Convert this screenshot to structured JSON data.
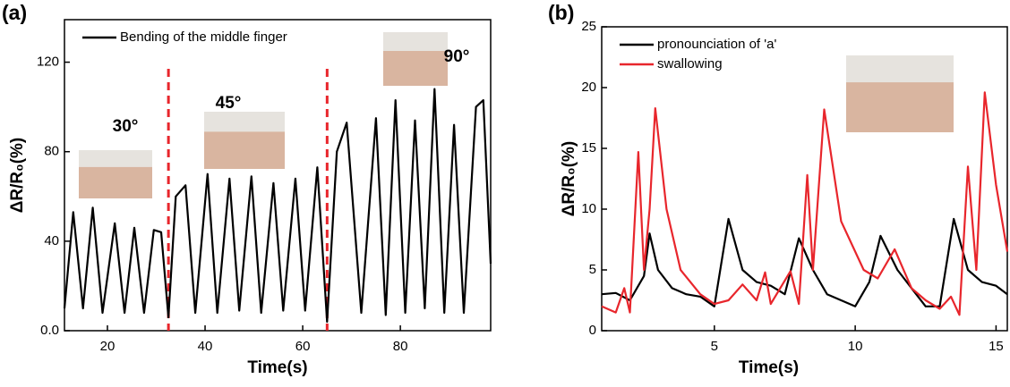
{
  "chart_data": [
    {
      "type": "line",
      "panel_label": "(a)",
      "xlabel": "Time(s)",
      "ylabel": "ΔR/R₀(%)",
      "xlim": [
        11.2,
        98.5
      ],
      "ylim": [
        0,
        139
      ],
      "xticks": [
        20,
        40,
        60,
        80
      ],
      "yticks": [
        {
          "value": 0,
          "label": "0.0"
        },
        40,
        80,
        120
      ],
      "vlines": [
        32.5,
        65
      ],
      "vline_color": "#e8262c",
      "annotations": [
        "30°",
        "45°",
        "90°"
      ],
      "series": [
        {
          "name": "Bending of the middle finger",
          "color": "#000000",
          "x": [
            11.2,
            13,
            15,
            17,
            19,
            21.5,
            23.5,
            25.5,
            27.5,
            29.5,
            31,
            32.5,
            34,
            36,
            38,
            40.5,
            42.5,
            45,
            47,
            49.5,
            51.5,
            54,
            56,
            58.5,
            60.5,
            63,
            65,
            67,
            69,
            72,
            75,
            77,
            79,
            81,
            83,
            85,
            87,
            89,
            91,
            93,
            95.5,
            97,
            98.5
          ],
          "values": [
            10,
            53,
            10,
            55,
            8,
            48,
            8,
            46,
            8,
            45,
            44,
            6,
            60,
            65,
            8,
            70,
            8,
            68,
            9,
            69,
            8,
            66,
            9,
            68,
            9,
            73,
            4,
            80,
            93,
            8,
            95,
            7,
            103,
            8,
            94,
            10,
            108,
            8,
            92,
            8,
            100,
            103,
            30
          ]
        }
      ]
    },
    {
      "type": "line",
      "panel_label": "(b)",
      "xlabel": "Time(s)",
      "ylabel": "ΔR/R₀(%)",
      "xlim": [
        1,
        15.4
      ],
      "ylim": [
        0,
        25
      ],
      "xticks": [
        5,
        10,
        15
      ],
      "yticks": [
        0,
        5,
        10,
        15,
        20,
        25
      ],
      "series": [
        {
          "name": "pronounciation of  'a'",
          "color": "#000000",
          "x": [
            1,
            1.5,
            2,
            2.5,
            2.7,
            3,
            3.5,
            4,
            4.5,
            5,
            5.5,
            6,
            6.5,
            7,
            7.5,
            8,
            8.5,
            9,
            9.5,
            10,
            10.5,
            10.9,
            11.5,
            12,
            12.5,
            13,
            13.5,
            14,
            14.5,
            15,
            15.4
          ],
          "values": [
            3,
            3.1,
            2.5,
            4.5,
            8,
            5,
            3.5,
            3,
            2.8,
            2,
            9.2,
            5,
            4,
            3.7,
            3,
            7.6,
            5,
            3,
            2.5,
            2,
            4,
            7.8,
            5,
            3.5,
            2,
            2,
            9.2,
            5,
            4,
            3.7,
            3
          ]
        },
        {
          "name": "swallowing",
          "color": "#e8262c",
          "x": [
            1,
            1.5,
            1.8,
            2,
            2.3,
            2.5,
            2.7,
            2.9,
            3.3,
            3.8,
            4.5,
            5,
            5.5,
            6,
            6.5,
            6.8,
            7,
            7.7,
            8,
            8.3,
            8.5,
            8.9,
            9.5,
            10.3,
            10.8,
            11.4,
            12,
            12.5,
            13,
            13.4,
            13.7,
            14,
            14.3,
            14.6,
            15,
            15.4
          ],
          "values": [
            2,
            1.5,
            3.5,
            1.5,
            14.7,
            5,
            10,
            18.3,
            10,
            5,
            3,
            2.2,
            2.5,
            3.8,
            2.5,
            4.8,
            2.2,
            4.9,
            2.2,
            12.8,
            5,
            18.2,
            9,
            5,
            4.3,
            6.7,
            3.5,
            2.5,
            1.8,
            2.8,
            1.3,
            13.5,
            5,
            19.6,
            12,
            6.5
          ]
        }
      ]
    }
  ]
}
